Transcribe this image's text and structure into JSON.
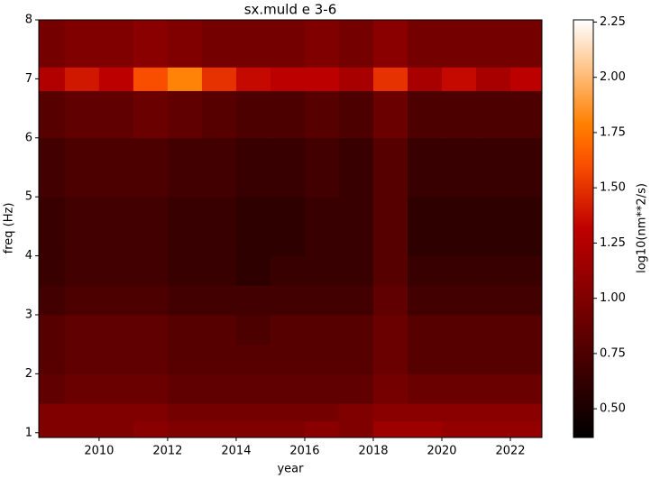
{
  "chart_data": {
    "type": "heatmap",
    "title": "sx.muld e 3-6",
    "x_label": "year",
    "y_label": "freq (Hz)",
    "colorbar_label": "log10(nm**2/s)",
    "colormap": "gist_heat",
    "xlim": [
      2008.24,
      2022.92
    ],
    "xticks": [
      2010,
      2012,
      2014,
      2016,
      2018,
      2020,
      2022
    ],
    "ylim": [
      0.92,
      8
    ],
    "yticks": [
      1,
      2,
      3,
      4,
      5,
      6,
      7,
      8
    ],
    "clim": [
      0.37,
      2.26
    ],
    "cticks": [
      {
        "value": 0.5,
        "label": "0.50"
      },
      0.75,
      {
        "value": 1.0,
        "label": "1.00"
      },
      1.25,
      {
        "value": 1.5,
        "label": "1.50"
      },
      1.75,
      {
        "value": 2.0,
        "label": "2.00"
      },
      2.25
    ],
    "x_bins": [
      2008.24,
      2009,
      2010,
      2011,
      2012,
      2013,
      2014,
      2015,
      2016,
      2017,
      2018,
      2019,
      2020,
      2021,
      2022,
      2022.92
    ],
    "y_bins": [
      0.92,
      1.2,
      1.5,
      2,
      2.5,
      3,
      3.5,
      4,
      5,
      6,
      6.8,
      7.2,
      8
    ],
    "z": [
      [
        1.0,
        1.0,
        1.0,
        1.05,
        1.0,
        1.0,
        1.0,
        1.0,
        1.05,
        1.0,
        1.15,
        1.15,
        1.1,
        1.1,
        1.1
      ],
      [
        1.0,
        1.0,
        1.0,
        1.0,
        0.95,
        0.95,
        0.95,
        0.95,
        0.95,
        1.0,
        1.05,
        1.05,
        1.05,
        1.05,
        1.05
      ],
      [
        0.85,
        0.9,
        0.9,
        0.9,
        0.85,
        0.85,
        0.85,
        0.85,
        0.85,
        0.85,
        0.95,
        0.9,
        0.9,
        0.9,
        0.9
      ],
      [
        0.8,
        0.85,
        0.85,
        0.85,
        0.8,
        0.8,
        0.8,
        0.8,
        0.8,
        0.8,
        0.9,
        0.8,
        0.8,
        0.8,
        0.8
      ],
      [
        0.8,
        0.85,
        0.85,
        0.85,
        0.8,
        0.8,
        0.75,
        0.8,
        0.8,
        0.8,
        0.9,
        0.8,
        0.8,
        0.8,
        0.8
      ],
      [
        0.7,
        0.75,
        0.75,
        0.75,
        0.7,
        0.7,
        0.7,
        0.7,
        0.7,
        0.7,
        0.85,
        0.7,
        0.7,
        0.7,
        0.7
      ],
      [
        0.65,
        0.7,
        0.7,
        0.7,
        0.65,
        0.65,
        0.6,
        0.65,
        0.65,
        0.65,
        0.8,
        0.65,
        0.65,
        0.65,
        0.65
      ],
      [
        0.65,
        0.7,
        0.7,
        0.7,
        0.65,
        0.65,
        0.6,
        0.6,
        0.65,
        0.65,
        0.8,
        0.6,
        0.6,
        0.6,
        0.6
      ],
      [
        0.7,
        0.75,
        0.75,
        0.75,
        0.7,
        0.7,
        0.65,
        0.65,
        0.7,
        0.65,
        0.8,
        0.65,
        0.65,
        0.65,
        0.65
      ],
      [
        0.8,
        0.85,
        0.85,
        0.9,
        0.85,
        0.8,
        0.75,
        0.75,
        0.8,
        0.75,
        0.9,
        0.75,
        0.75,
        0.75,
        0.75
      ],
      [
        1.25,
        1.4,
        1.3,
        1.6,
        1.8,
        1.5,
        1.35,
        1.3,
        1.3,
        1.2,
        1.5,
        1.2,
        1.35,
        1.2,
        1.3
      ],
      [
        0.95,
        1.0,
        1.0,
        1.05,
        1.0,
        0.95,
        0.95,
        0.95,
        1.0,
        0.95,
        1.05,
        0.95,
        0.95,
        0.95,
        0.95
      ]
    ]
  }
}
